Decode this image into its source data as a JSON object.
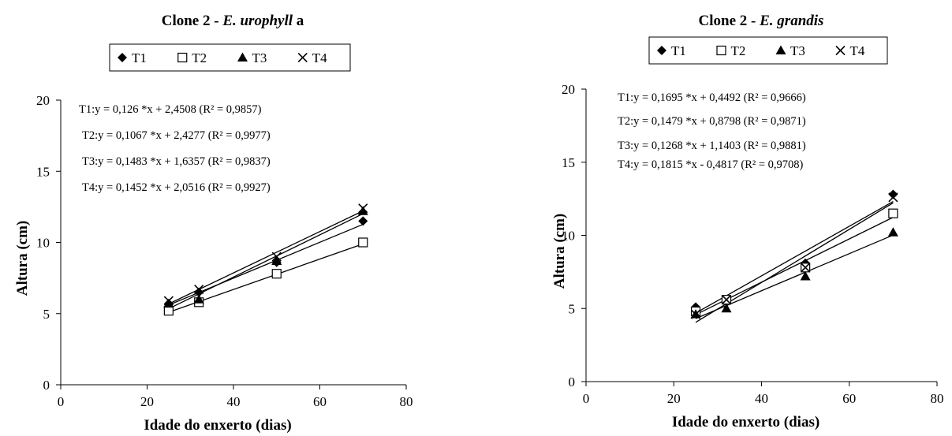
{
  "chart_data": [
    {
      "type": "scatter",
      "title_prefix": "Clone 2 - ",
      "title_species": "E. urophyll",
      "title_suffix": " a",
      "xlabel": "Idade do enxerto (dias)",
      "ylabel": "Altura (cm)",
      "xlim": [
        0,
        80
      ],
      "ylim": [
        0,
        20
      ],
      "xticks": [
        "0",
        "20",
        "40",
        "60",
        "80"
      ],
      "yticks": [
        "0",
        "5",
        "10",
        "15",
        "20"
      ],
      "grid": false,
      "legend_position": "top",
      "x": [
        25,
        32,
        50,
        70
      ],
      "series": [
        {
          "name": "T1",
          "marker": "diamond",
          "values": [
            5.7,
            6.5,
            8.6,
            11.5
          ],
          "fit": {
            "slope": 0.126,
            "intercept": 2.4508
          },
          "equation": "T1:y = 0,126 *x + 2,4508 (R² = 0,9857)"
        },
        {
          "name": "T2",
          "marker": "square",
          "values": [
            5.2,
            5.8,
            7.8,
            10.0
          ],
          "fit": {
            "slope": 0.1067,
            "intercept": 2.4277
          },
          "equation": "T2:y = 0,1067 *x + 2,4277 (R² = 0,9977)"
        },
        {
          "name": "T3",
          "marker": "triangle",
          "values": [
            5.7,
            6.0,
            8.7,
            12.2
          ],
          "fit": {
            "slope": 0.1483,
            "intercept": 1.6357
          },
          "equation": "T3:y = 0,1483 *x + 1,6357 (R² = 0,9837)"
        },
        {
          "name": "T4",
          "marker": "x",
          "values": [
            5.9,
            6.7,
            9.0,
            12.4
          ],
          "fit": {
            "slope": 0.1452,
            "intercept": 2.0516
          },
          "equation": "T4:y = 0,1452 *x + 2,0516 (R² = 0,9927)"
        }
      ]
    },
    {
      "type": "scatter",
      "title_prefix": "Clone 2 - ",
      "title_species": "E. grandis",
      "title_suffix": "",
      "xlabel": "Idade do enxerto (dias)",
      "ylabel": "Altura (cm)",
      "xlim": [
        0,
        80
      ],
      "ylim": [
        0,
        20
      ],
      "xticks": [
        "0",
        "20",
        "40",
        "60",
        "80"
      ],
      "yticks": [
        "0",
        "5",
        "10",
        "15",
        "20"
      ],
      "grid": false,
      "legend_position": "top",
      "x": [
        25,
        32,
        50,
        70
      ],
      "series": [
        {
          "name": "T1",
          "marker": "diamond",
          "values": [
            5.1,
            5.6,
            8.1,
            12.8
          ],
          "fit": {
            "slope": 0.1695,
            "intercept": 0.4492
          },
          "equation": "T1:y = 0,1695 *x + 0,4492 (R² = 0,9666)"
        },
        {
          "name": "T2",
          "marker": "square",
          "values": [
            4.8,
            5.6,
            7.8,
            11.5
          ],
          "fit": {
            "slope": 0.1479,
            "intercept": 0.8798
          },
          "equation": "T2:y = 0,1479 *x + 0,8798 (R² = 0,9871)"
        },
        {
          "name": "T3",
          "marker": "triangle",
          "values": [
            4.6,
            5.0,
            7.2,
            10.2
          ],
          "fit": {
            "slope": 0.1268,
            "intercept": 1.1403
          },
          "equation": "T3:y = 0,1268 *x + 1,1403 (R² = 0,9881)"
        },
        {
          "name": "T4",
          "marker": "x",
          "values": [
            4.6,
            5.6,
            7.8,
            12.6
          ],
          "fit": {
            "slope": 0.1815,
            "intercept": -0.4817
          },
          "equation": "T4:y = 0,1815 *x - 0,4817 (R² = 0,9708)"
        }
      ]
    }
  ]
}
